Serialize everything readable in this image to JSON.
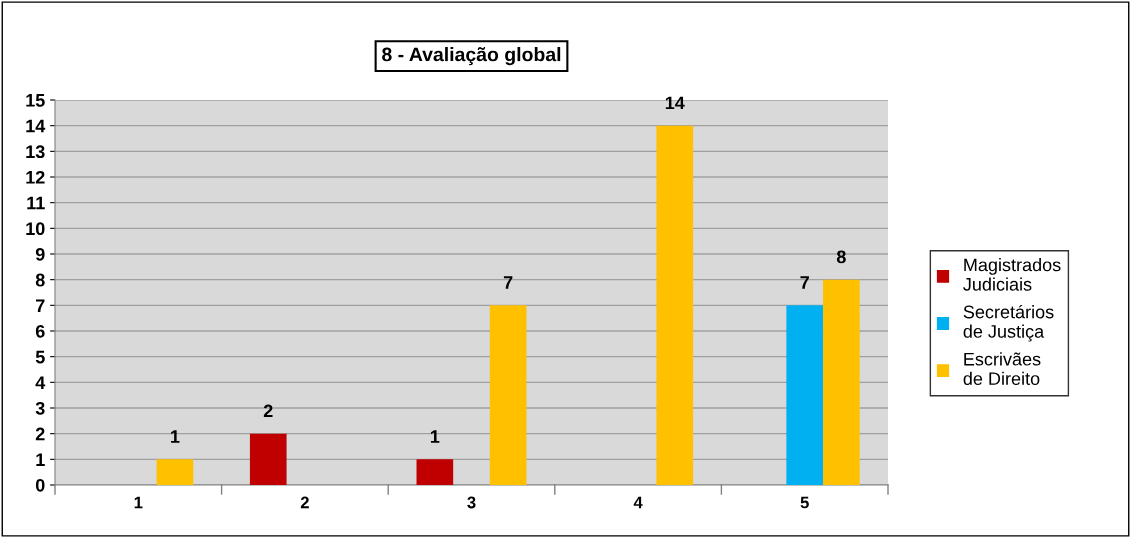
{
  "chart_data": {
    "type": "bar",
    "title": "8 - Avaliação global",
    "categories": [
      "1",
      "2",
      "3",
      "4",
      "5"
    ],
    "series": [
      {
        "name": "Magistrados Judiciais",
        "color": "#c00000",
        "values": [
          null,
          2,
          1,
          null,
          null
        ]
      },
      {
        "name": "Secretários de Justiça",
        "color": "#00b0f0",
        "values": [
          null,
          null,
          null,
          null,
          7
        ]
      },
      {
        "name": "Escrivães de Direito",
        "color": "#ffc000",
        "values": [
          1,
          null,
          7,
          14,
          8
        ]
      }
    ],
    "ylim": [
      0,
      15
    ],
    "yticks": [
      0,
      1,
      2,
      3,
      4,
      5,
      6,
      7,
      8,
      9,
      10,
      11,
      12,
      13,
      14,
      15
    ],
    "grid": "y",
    "legend": "right",
    "data_labels": true
  }
}
